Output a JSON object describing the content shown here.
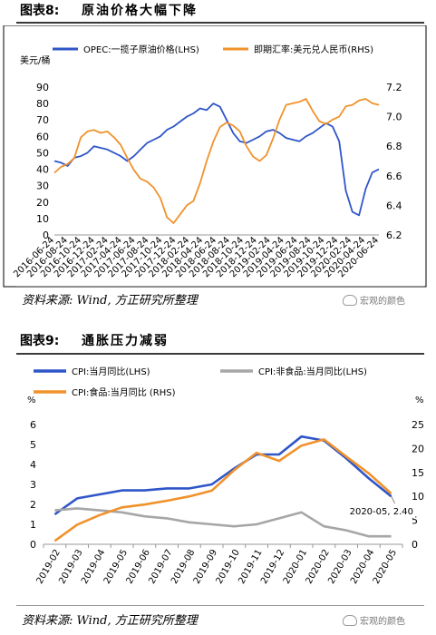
{
  "fig8": {
    "number": "图表8:",
    "title": "原油价格大幅下降",
    "source": "资料来源: Wind, 方正研究所整理",
    "watermark": "宏观的颜色"
  },
  "fig9": {
    "number": "图表9:",
    "title": "通胀压力减弱",
    "source": "资料来源: Wind, 方正研究所整理",
    "watermark": "宏观的颜色"
  },
  "chart_data": [
    {
      "type": "line",
      "left_unit": "美元/桶",
      "ylim_left": [
        0,
        90
      ],
      "ylim_right": [
        6.2,
        7.2
      ],
      "yticks_left": [
        0,
        10,
        20,
        30,
        40,
        50,
        60,
        70,
        80,
        90
      ],
      "yticks_right": [
        6.2,
        6.4,
        6.6,
        6.8,
        7.0,
        7.2
      ],
      "x_tick_labels": [
        "2016-06-24",
        "2016-08-24",
        "2016-10-24",
        "2016-12-24",
        "2017-02-24",
        "2017-04-24",
        "2017-06-24",
        "2017-08-24",
        "2017-10-24",
        "2017-12-24",
        "2018-02-24",
        "2018-04-24",
        "2018-06-24",
        "2018-08-24",
        "2018-10-24",
        "2018-12-24",
        "2019-02-24",
        "2019-04-24",
        "2019-06-24",
        "2019-08-24",
        "2019-10-24",
        "2019-12-24",
        "2020-02-24",
        "2020-04-24",
        "2020-06-24"
      ],
      "grid": false,
      "legend_position": "top",
      "series": [
        {
          "name": "OPEC:一揽子原油价格(LHS)",
          "axis": "left",
          "color": "#2f56c8",
          "values": [
            45,
            44,
            42,
            47,
            48,
            50,
            54,
            53,
            52,
            50,
            48,
            45,
            48,
            52,
            56,
            58,
            60,
            64,
            66,
            69,
            72,
            74,
            77,
            76,
            80,
            78,
            70,
            62,
            57,
            56,
            58,
            60,
            63,
            64,
            62,
            59,
            58,
            57,
            60,
            62,
            65,
            68,
            66,
            57,
            27,
            14,
            12,
            28,
            38,
            40
          ]
        },
        {
          "name": "即期汇率:美元兑人民币(RHS)",
          "axis": "right",
          "color": "#f0922c",
          "values": [
            6.62,
            6.66,
            6.68,
            6.72,
            6.86,
            6.9,
            6.91,
            6.89,
            6.9,
            6.86,
            6.81,
            6.72,
            6.64,
            6.58,
            6.56,
            6.52,
            6.45,
            6.32,
            6.28,
            6.34,
            6.4,
            6.43,
            6.55,
            6.7,
            6.83,
            6.93,
            6.96,
            6.94,
            6.9,
            6.8,
            6.73,
            6.7,
            6.74,
            6.85,
            6.98,
            7.08,
            7.09,
            7.1,
            7.12,
            7.04,
            6.97,
            6.95,
            6.98,
            7.0,
            7.07,
            7.08,
            7.11,
            7.12,
            7.09,
            7.08
          ]
        }
      ]
    },
    {
      "type": "line",
      "left_unit": "%",
      "right_unit": "%",
      "ylim_left": [
        0,
        6
      ],
      "ylim_right": [
        0,
        25
      ],
      "yticks_left": [
        0,
        1,
        2,
        3,
        4,
        5,
        6
      ],
      "yticks_right": [
        0,
        5,
        10,
        15,
        20,
        25
      ],
      "categories": [
        "2019-02",
        "2019-03",
        "2019-04",
        "2019-05",
        "2019-06",
        "2019-07",
        "2019-08",
        "2019-09",
        "2019-10",
        "2019-11",
        "2019-12",
        "2020-01",
        "2020-02",
        "2020-03",
        "2020-04",
        "2020-05"
      ],
      "grid": false,
      "legend_position": "top-left",
      "annotation": "2020-05, 2.40",
      "series": [
        {
          "name": "CPI:当月同比(LHS)",
          "axis": "left",
          "color": "#2f56c8",
          "values": [
            1.5,
            2.3,
            2.5,
            2.7,
            2.7,
            2.8,
            2.8,
            3.0,
            3.8,
            4.5,
            4.5,
            5.4,
            5.2,
            4.3,
            3.3,
            2.4
          ]
        },
        {
          "name": "CPI:非食品:当月同比(LHS)",
          "axis": "left",
          "color": "#a6a6a6",
          "values": [
            1.7,
            1.8,
            1.7,
            1.6,
            1.4,
            1.3,
            1.1,
            1.0,
            0.9,
            1.0,
            1.3,
            1.6,
            0.9,
            0.7,
            0.4,
            0.4
          ]
        },
        {
          "name": "CPI:食品:当月同比 (RHS)",
          "axis": "right",
          "color": "#f0922c",
          "values": [
            0.7,
            4.1,
            6.1,
            7.7,
            8.3,
            9.1,
            10.0,
            11.2,
            15.5,
            19.1,
            17.4,
            20.6,
            21.9,
            18.3,
            14.8,
            10.6
          ]
        }
      ]
    }
  ]
}
